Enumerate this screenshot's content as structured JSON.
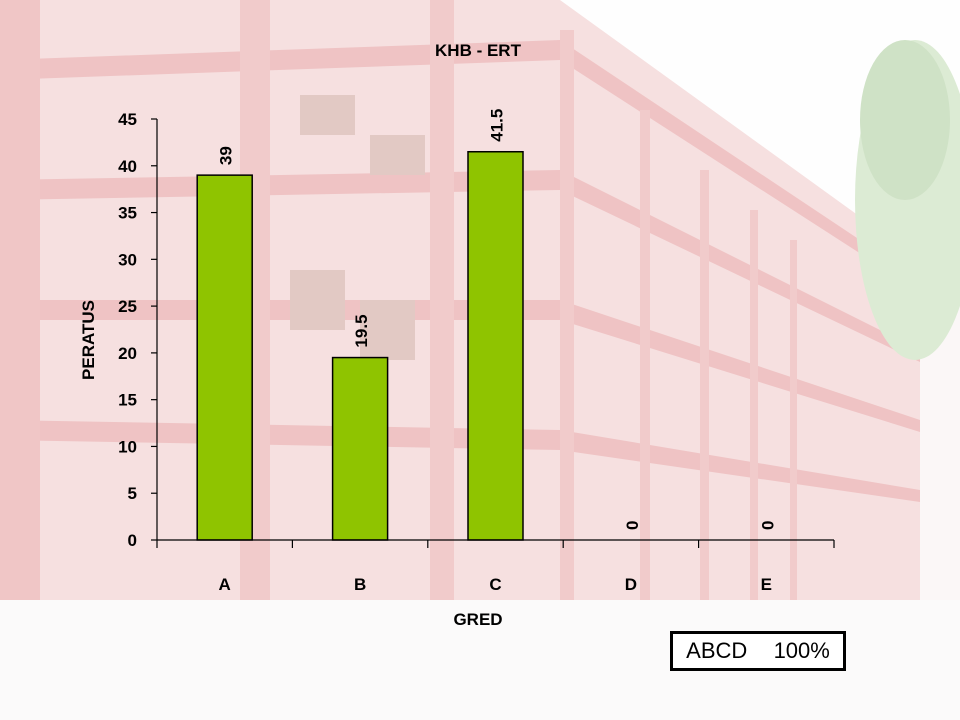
{
  "chart_data": {
    "type": "bar",
    "title": "KHB - ERT",
    "xlabel": "GRED",
    "ylabel": "PERATUS",
    "categories": [
      "A",
      "B",
      "C",
      "D",
      "E"
    ],
    "values": [
      39,
      19.5,
      41.5,
      0,
      0
    ],
    "data_labels": [
      "39",
      "19.5",
      "41.5",
      "0",
      "0"
    ],
    "ylim": [
      0,
      45
    ],
    "yticks": [
      0,
      5,
      10,
      15,
      20,
      25,
      30,
      35,
      40,
      45
    ],
    "grid": false,
    "bar_color": "#8fc400"
  },
  "summary": {
    "label": "ABCD",
    "value": "100%"
  }
}
